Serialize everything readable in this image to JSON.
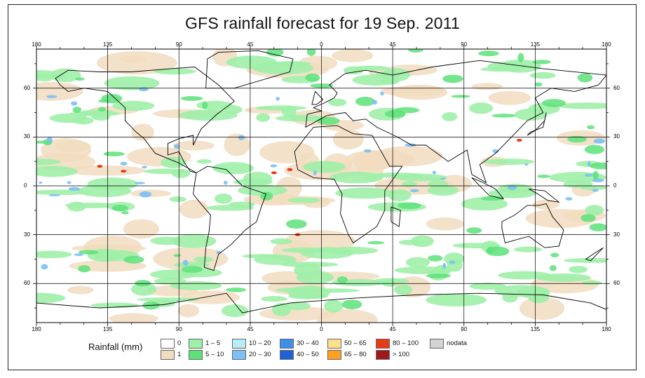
{
  "title": "GFS rainfall forecast for 19 Sep. 2011",
  "top_lon_labels": [
    "180",
    "135",
    "90",
    "45",
    "0",
    "45",
    "90",
    "135",
    "180"
  ],
  "bottom_lon_labels": [
    "180",
    "135",
    "90",
    "45",
    "0",
    "45",
    "90",
    "135",
    "180"
  ],
  "left_lat_labels": [
    "60",
    "30",
    "0",
    "30",
    "60"
  ],
  "right_lat_labels": [
    "60",
    "30",
    "0",
    "30",
    "60"
  ],
  "legend": {
    "title": "Rainfall (mm)",
    "items": [
      {
        "label": "0",
        "color": "#ffffff"
      },
      {
        "label": "1",
        "color": "#f2dcc0"
      },
      {
        "label": "1 – 5",
        "color": "#9ff0a8"
      },
      {
        "label": "5 – 10",
        "color": "#5de27a"
      },
      {
        "label": "10 – 20",
        "color": "#b8ecf6"
      },
      {
        "label": "20 – 30",
        "color": "#7cc0f4"
      },
      {
        "label": "30 – 40",
        "color": "#3f8ee8"
      },
      {
        "label": "40 – 50",
        "color": "#2060d8"
      },
      {
        "label": "50 – 65",
        "color": "#ffe08a"
      },
      {
        "label": "65 – 80",
        "color": "#ffa020"
      },
      {
        "label": "80 – 100",
        "color": "#e83a16"
      },
      {
        "label": "> 100",
        "color": "#a01818"
      },
      {
        "label": "nodata",
        "color": "#d4d4d4"
      }
    ]
  },
  "colors": {
    "grid": "#000000",
    "coast": "#000000",
    "dry": "#f2dcc0",
    "light": "#9ff0a8",
    "moderate": "#5de27a",
    "blue": "#7cc0f4",
    "heavy": "#e83a16"
  }
}
